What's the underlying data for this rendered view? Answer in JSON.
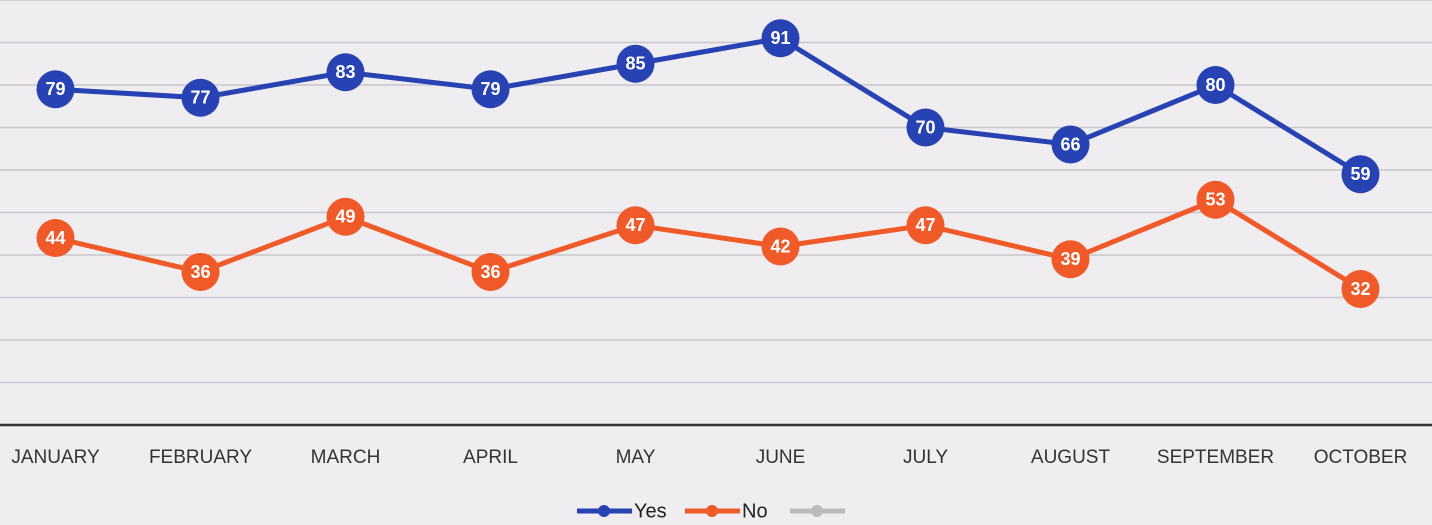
{
  "chart_data": {
    "type": "line",
    "categories": [
      "JANUARY",
      "FEBRUARY",
      "MARCH",
      "APRIL",
      "MAY",
      "JUNE",
      "JULY",
      "AUGUST",
      "SEPTEMBER",
      "OCTOBER"
    ],
    "series": [
      {
        "name": "Yes",
        "color": "#2742b3",
        "values": [
          79,
          77,
          83,
          79,
          85,
          91,
          70,
          66,
          80,
          59
        ]
      },
      {
        "name": "No",
        "color": "#f05a28",
        "values": [
          44,
          36,
          49,
          36,
          47,
          42,
          47,
          39,
          53,
          32
        ]
      }
    ],
    "ylim": [
      0,
      100
    ],
    "yticks": [
      0,
      10,
      20,
      30,
      40,
      50,
      60,
      70,
      80,
      90,
      100
    ],
    "grid": true,
    "data_labels": true,
    "legend": "bottom"
  }
}
